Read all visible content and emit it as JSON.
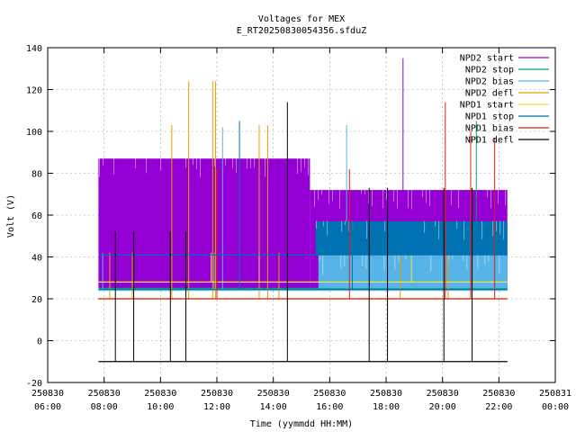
{
  "chart_data": {
    "type": "line",
    "title": "Voltages for MEX",
    "subtitle": "E_RT20250830054356.sfduZ",
    "xlabel": "Time (yymmdd HH:MM)",
    "ylabel": "Volt (V)",
    "xlim_hours": [
      6,
      24
    ],
    "ylim": [
      -20,
      140
    ],
    "grid": true,
    "legend_position": "top-right",
    "y_ticks": [
      "-20",
      "0",
      "20",
      "40",
      "60",
      "80",
      "100",
      "120",
      "140"
    ],
    "x_ticks": [
      {
        "hour": 6,
        "date": "250830",
        "time": "06:00"
      },
      {
        "hour": 8,
        "date": "250830",
        "time": "08:00"
      },
      {
        "hour": 10,
        "date": "250830",
        "time": "10:00"
      },
      {
        "hour": 12,
        "date": "250830",
        "time": "12:00"
      },
      {
        "hour": 14,
        "date": "250830",
        "time": "14:00"
      },
      {
        "hour": 16,
        "date": "250830",
        "time": "16:00"
      },
      {
        "hour": 18,
        "date": "250830",
        "time": "18:00"
      },
      {
        "hour": 20,
        "date": "250830",
        "time": "20:00"
      },
      {
        "hour": 22,
        "date": "250830",
        "time": "22:00"
      },
      {
        "hour": 24,
        "date": "250831",
        "time": "00:00"
      }
    ],
    "series": [
      {
        "name": "NPD2 start",
        "color": "#9400d3",
        "bands": [
          {
            "t0": 7.8,
            "t1": 15.3,
            "low": 25,
            "high": 87
          },
          {
            "t0": 15.3,
            "t1": 22.3,
            "low": 25,
            "high": 72
          }
        ],
        "spikes": [
          {
            "t": 7.95,
            "v": 55
          },
          {
            "t": 8.8,
            "v": 62
          },
          {
            "t": 9.3,
            "v": 72
          },
          {
            "t": 9.7,
            "v": 58
          },
          {
            "t": 11.2,
            "v": 66
          },
          {
            "t": 12.9,
            "v": 60
          },
          {
            "t": 13.6,
            "v": 70
          },
          {
            "t": 14.8,
            "v": 60
          },
          {
            "t": 17.5,
            "v": 62
          },
          {
            "t": 18.6,
            "v": 135
          },
          {
            "t": 19.8,
            "v": 60
          },
          {
            "t": 20.4,
            "v": 65
          },
          {
            "t": 21.1,
            "v": 60
          },
          {
            "t": 21.7,
            "v": 62
          }
        ]
      },
      {
        "name": "NPD2 stop",
        "color": "#009e73",
        "flat": [
          {
            "t0": 7.8,
            "t1": 22.3,
            "v": 25
          }
        ],
        "spikes": [
          {
            "t": 21.2,
            "v": 105
          }
        ]
      },
      {
        "name": "NPD2 bias",
        "color": "#56b4e9",
        "bands": [
          {
            "t0": 15.6,
            "t1": 22.3,
            "low": 25,
            "high": 41
          }
        ],
        "flat": [
          {
            "t0": 7.8,
            "t1": 22.3,
            "v": 24
          }
        ],
        "spikes": [
          {
            "t": 7.95,
            "v": 42
          },
          {
            "t": 11.9,
            "v": 42
          },
          {
            "t": 12.2,
            "v": 102
          },
          {
            "t": 16.6,
            "v": 103
          },
          {
            "t": 20.2,
            "v": 57
          }
        ]
      },
      {
        "name": "NPD2 defl",
        "color": "#e69f00",
        "flat": [
          {
            "t0": 7.8,
            "t1": 22.3,
            "v": 20
          }
        ],
        "spikes": [
          {
            "t": 8.2,
            "v": 42
          },
          {
            "t": 9.0,
            "v": 42
          },
          {
            "t": 10.4,
            "v": 103
          },
          {
            "t": 10.9,
            "v": 42
          },
          {
            "t": 11.0,
            "v": 124
          },
          {
            "t": 11.85,
            "v": 124
          },
          {
            "t": 11.95,
            "v": 124
          },
          {
            "t": 13.5,
            "v": 103
          },
          {
            "t": 13.8,
            "v": 103
          },
          {
            "t": 14.2,
            "v": 42
          },
          {
            "t": 18.5,
            "v": 42
          },
          {
            "t": 20.2,
            "v": 42
          }
        ]
      },
      {
        "name": "NPD1 start",
        "color": "#f0e442",
        "flat": [
          {
            "t0": 7.8,
            "t1": 22.3,
            "v": 28
          }
        ],
        "spikes": [
          {
            "t": 11.8,
            "v": 42
          },
          {
            "t": 13.5,
            "v": 42
          },
          {
            "t": 18.9,
            "v": 42
          }
        ]
      },
      {
        "name": "NPD1 stop",
        "color": "#0072b2",
        "bands": [
          {
            "t0": 15.5,
            "t1": 22.3,
            "low": 41,
            "high": 57
          }
        ],
        "flat": [
          {
            "t0": 7.8,
            "t1": 22.3,
            "v": 24.5
          },
          {
            "t0": 7.8,
            "t1": 22.3,
            "v": 41
          }
        ],
        "spikes": [
          {
            "t": 12.8,
            "v": 105
          },
          {
            "t": 16.8,
            "v": 57
          }
        ]
      },
      {
        "name": "NPD1 bias",
        "color": "#e51e10",
        "flat": [
          {
            "t0": 7.8,
            "t1": 22.3,
            "v": 20
          }
        ],
        "spikes": [
          {
            "t": 12.0,
            "v": 82
          },
          {
            "t": 16.7,
            "v": 82
          },
          {
            "t": 20.1,
            "v": 114
          },
          {
            "t": 21.0,
            "v": 100
          },
          {
            "t": 21.85,
            "v": 97
          }
        ]
      },
      {
        "name": "NPD1 defl",
        "color": "#000000",
        "flat": [
          {
            "t0": 7.8,
            "t1": 22.3,
            "v": -10
          }
        ],
        "spikes": [
          {
            "t": 8.4,
            "v": 52
          },
          {
            "t": 9.05,
            "v": 52
          },
          {
            "t": 10.35,
            "v": 52
          },
          {
            "t": 10.9,
            "v": 52
          },
          {
            "t": 14.5,
            "v": 114
          },
          {
            "t": 17.4,
            "v": 73
          },
          {
            "t": 18.05,
            "v": 73
          },
          {
            "t": 20.05,
            "v": 73
          },
          {
            "t": 21.05,
            "v": 73
          }
        ]
      }
    ]
  }
}
